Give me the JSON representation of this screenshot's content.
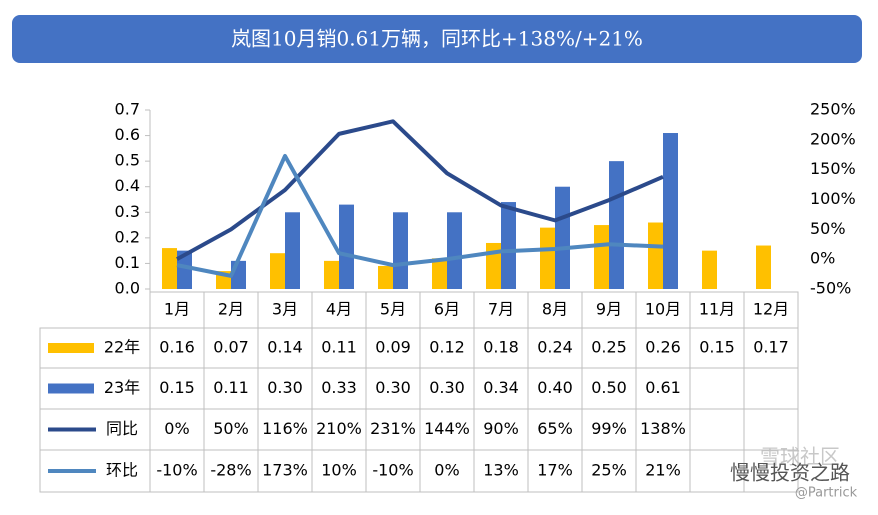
{
  "chart_data": {
    "type": "bar",
    "title": "岚图10月销0.61万辆，同环比+138%/+21%",
    "categories": [
      "1月",
      "2月",
      "3月",
      "4月",
      "5月",
      "6月",
      "7月",
      "8月",
      "9月",
      "10月",
      "11月",
      "12月"
    ],
    "series": [
      {
        "name": "22年",
        "type": "bar",
        "color": "#ffc000",
        "values": [
          0.16,
          0.07,
          0.14,
          0.11,
          0.09,
          0.12,
          0.18,
          0.24,
          0.25,
          0.26,
          0.15,
          0.17
        ],
        "value_labels": [
          "0.16",
          "0.07",
          "0.14",
          "0.11",
          "0.09",
          "0.12",
          "0.18",
          "0.24",
          "0.25",
          "0.26",
          "0.15",
          "0.17"
        ]
      },
      {
        "name": "23年",
        "type": "bar",
        "color": "#4472c4",
        "values": [
          0.15,
          0.11,
          0.3,
          0.33,
          0.3,
          0.3,
          0.34,
          0.4,
          0.5,
          0.61,
          null,
          null
        ],
        "value_labels": [
          "0.15",
          "0.11",
          "0.30",
          "0.33",
          "0.30",
          "0.30",
          "0.34",
          "0.40",
          "0.50",
          "0.61",
          null,
          null
        ]
      },
      {
        "name": "同比",
        "type": "line",
        "axis": "y2",
        "color": "#2b4a8b",
        "values": [
          0,
          50,
          116,
          210,
          231,
          144,
          90,
          65,
          99,
          138,
          null,
          null
        ],
        "value_labels": [
          "0%",
          "50%",
          "116%",
          "210%",
          "231%",
          "144%",
          "90%",
          "65%",
          "99%",
          "138%",
          null,
          null
        ]
      },
      {
        "name": "环比",
        "type": "line",
        "axis": "y2",
        "color": "#4f87bf",
        "values": [
          -10,
          -28,
          173,
          10,
          -10,
          0,
          13,
          17,
          25,
          21,
          null,
          null
        ],
        "value_labels": [
          "-10%",
          "-28%",
          "173%",
          "10%",
          "-10%",
          "0%",
          "13%",
          "17%",
          "25%",
          "21%",
          null,
          null
        ]
      }
    ],
    "ylim": [
      0,
      0.7
    ],
    "yticks": [
      {
        "value": 0,
        "label": "0.0"
      },
      0.1,
      0.2,
      0.3,
      0.4,
      0.5,
      0.6,
      0.7
    ],
    "y2lim": [
      -50,
      250
    ],
    "y2ticks": [
      {
        "value": -50,
        "label": "-50%"
      },
      {
        "value": 0,
        "label": "0%"
      },
      {
        "value": 50,
        "label": "50%"
      },
      {
        "value": 100,
        "label": "100%"
      },
      {
        "value": 150,
        "label": "150%"
      },
      {
        "value": 200,
        "label": "200%"
      },
      {
        "value": 250,
        "label": "250%"
      }
    ],
    "watermark": [
      "雪球社区",
      "慢慢投资之路",
      "@Partrick"
    ]
  }
}
